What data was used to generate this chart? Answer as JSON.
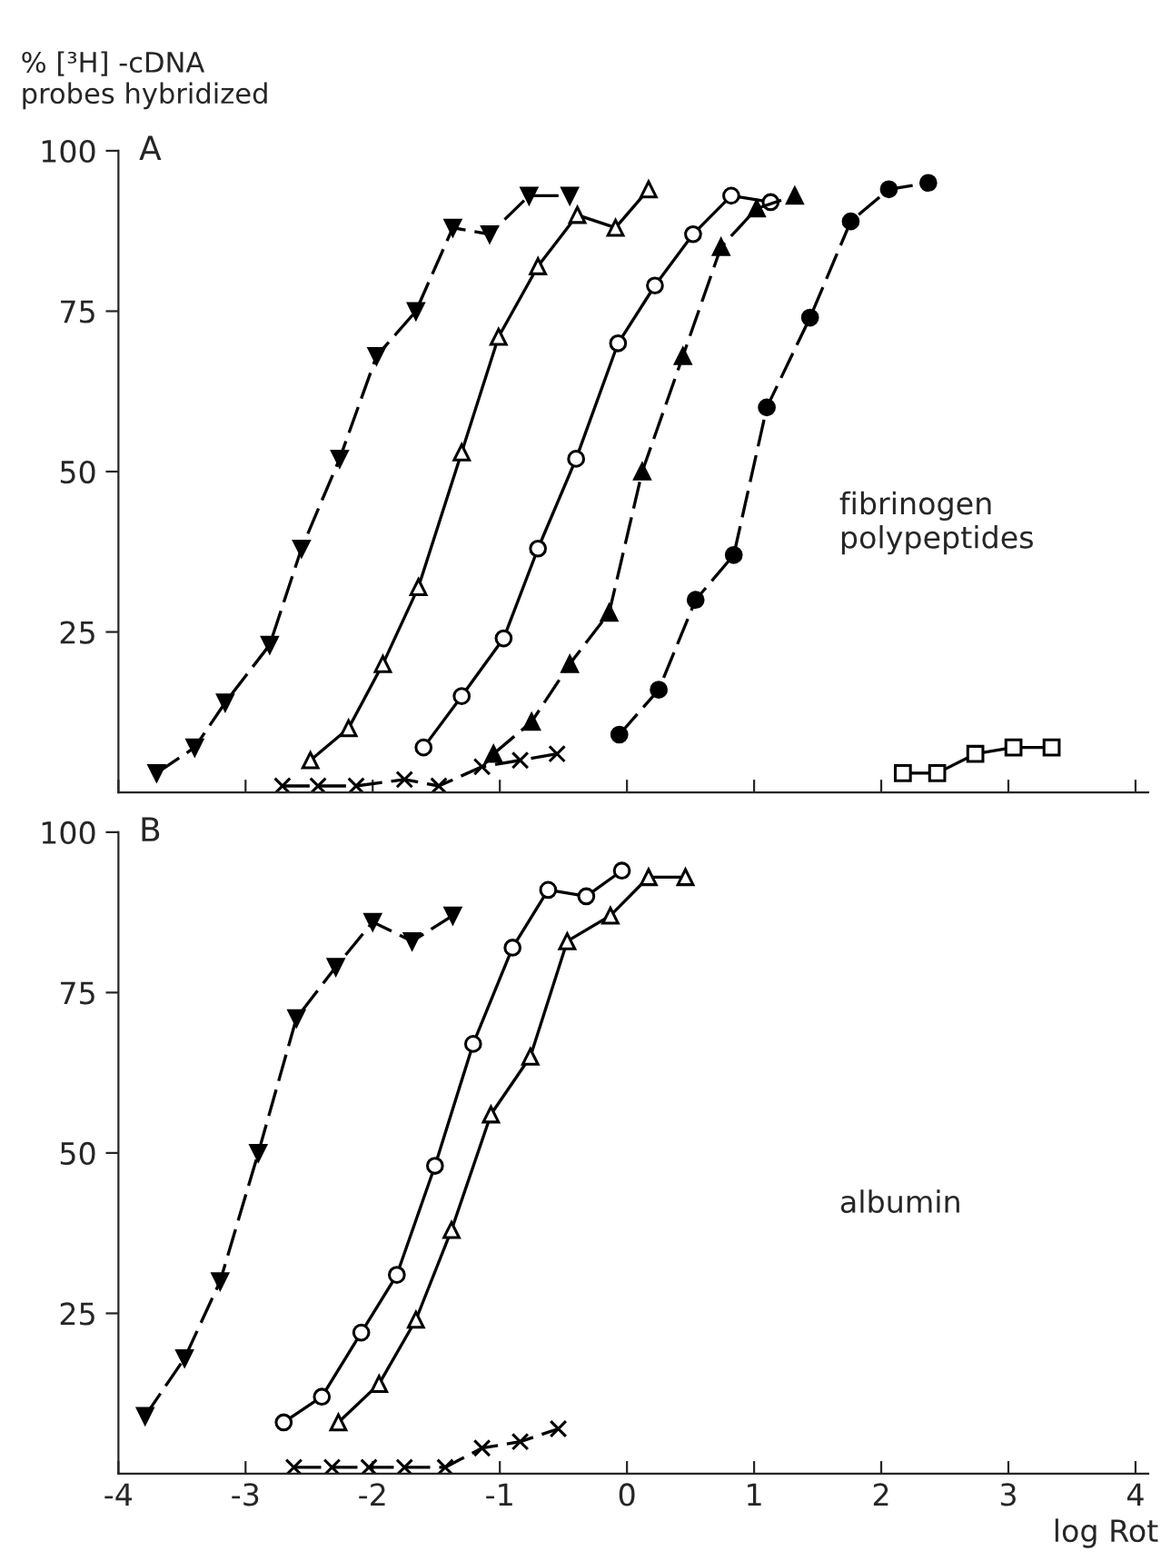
{
  "chart_data": [
    {
      "type": "line",
      "ylabel": "% [³H] -cDNA\nprobes hybridized",
      "annotations": [
        "A",
        "fibrinogen\npolypeptides"
      ],
      "xlim": [
        -4,
        4.1
      ],
      "ylim": [
        0,
        100
      ],
      "xticks": [
        -4,
        -3,
        -2,
        -1,
        0,
        1,
        2,
        3,
        4
      ],
      "yticks": [
        25,
        50,
        75,
        100
      ],
      "tick_labels": "y",
      "grid": false,
      "series": [
        {
          "color": "#000000",
          "marker": "triangle_down",
          "line_style": "dashed",
          "x": [
            -3.7,
            -3.4,
            -3.16,
            -2.81,
            -2.56,
            -2.26,
            -1.97,
            -1.66,
            -1.37,
            -1.08,
            -0.77,
            -0.45
          ],
          "values": [
            3,
            7,
            14,
            23,
            38,
            52,
            68,
            75,
            88,
            87,
            93,
            93
          ]
        },
        {
          "color": "#000000",
          "marker": "triangle_open",
          "line_style": "solid",
          "x": [
            -2.49,
            -2.19,
            -1.92,
            -1.64,
            -1.3,
            -1.01,
            -0.7,
            -0.39,
            -0.09,
            0.17
          ],
          "values": [
            5,
            10,
            20,
            32,
            53,
            71,
            82,
            90,
            88,
            94
          ]
        },
        {
          "color": "#000000",
          "marker": "circle_open",
          "line_style": "solid",
          "x": [
            -1.6,
            -1.3,
            -0.97,
            -0.7,
            -0.4,
            -0.07,
            0.22,
            0.52,
            0.82,
            1.13
          ],
          "values": [
            7,
            15,
            24,
            38,
            52,
            70,
            79,
            87,
            93,
            92
          ]
        },
        {
          "color": "#000000",
          "marker": "triangle",
          "line_style": "dashed",
          "x": [
            -1.05,
            -0.75,
            -0.45,
            -0.14,
            0.12,
            0.44,
            0.74,
            1.02,
            1.32
          ],
          "values": [
            6,
            11,
            20,
            28,
            50,
            68,
            85,
            91,
            93
          ]
        },
        {
          "color": "#000000",
          "marker": "circle",
          "line_style": "dashed",
          "x": [
            -0.06,
            0.25,
            0.54,
            0.84,
            1.1,
            1.44,
            1.76,
            2.06,
            2.37
          ],
          "values": [
            9,
            16,
            30,
            37,
            60,
            74,
            89,
            94,
            95
          ]
        },
        {
          "color": "#000000",
          "marker": "square_open",
          "line_style": "solid",
          "x": [
            2.17,
            2.44,
            2.74,
            3.04,
            3.34
          ],
          "values": [
            3,
            3,
            6,
            7,
            7
          ]
        },
        {
          "color": "#000000",
          "marker": "cross",
          "line_style": "dashed",
          "x": [
            -2.71,
            -2.43,
            -2.13,
            -1.75,
            -1.48,
            -1.14,
            -0.84,
            -0.55
          ],
          "values": [
            1,
            1,
            1,
            2,
            1,
            4,
            5,
            6
          ]
        }
      ]
    },
    {
      "type": "line",
      "xlabel": "log Rot",
      "annotations": [
        "B",
        "albumin"
      ],
      "xlim": [
        -4,
        4.1
      ],
      "ylim": [
        0,
        100
      ],
      "xticks": [
        -4,
        -3,
        -2,
        -1,
        0,
        1,
        2,
        3,
        4
      ],
      "yticks": [
        25,
        50,
        75,
        100
      ],
      "grid": false,
      "series": [
        {
          "color": "#000000",
          "marker": "triangle_down",
          "line_style": "dashed",
          "x": [
            -3.79,
            -3.48,
            -3.2,
            -2.9,
            -2.6,
            -2.29,
            -2.0,
            -1.69,
            -1.37
          ],
          "values": [
            9,
            18,
            30,
            50,
            71,
            79,
            86,
            83,
            87
          ]
        },
        {
          "color": "#000000",
          "marker": "circle_open",
          "line_style": "solid",
          "x": [
            -2.7,
            -2.4,
            -2.09,
            -1.81,
            -1.51,
            -1.21,
            -0.9,
            -0.62,
            -0.32,
            -0.04
          ],
          "values": [
            8,
            12,
            22,
            31,
            48,
            67,
            82,
            91,
            90,
            94
          ]
        },
        {
          "color": "#000000",
          "marker": "triangle_open",
          "line_style": "solid",
          "x": [
            -2.27,
            -1.95,
            -1.66,
            -1.38,
            -1.07,
            -0.76,
            -0.47,
            -0.13,
            0.17,
            0.46
          ],
          "values": [
            8,
            14,
            24,
            38,
            56,
            65,
            83,
            87,
            93,
            93
          ]
        },
        {
          "color": "#000000",
          "marker": "cross",
          "line_style": "dashed",
          "x": [
            -2.62,
            -2.32,
            -2.03,
            -1.75,
            -1.43,
            -1.14,
            -0.84,
            -0.54
          ],
          "values": [
            1,
            1,
            1,
            1,
            1,
            4,
            5,
            7
          ]
        }
      ]
    }
  ]
}
